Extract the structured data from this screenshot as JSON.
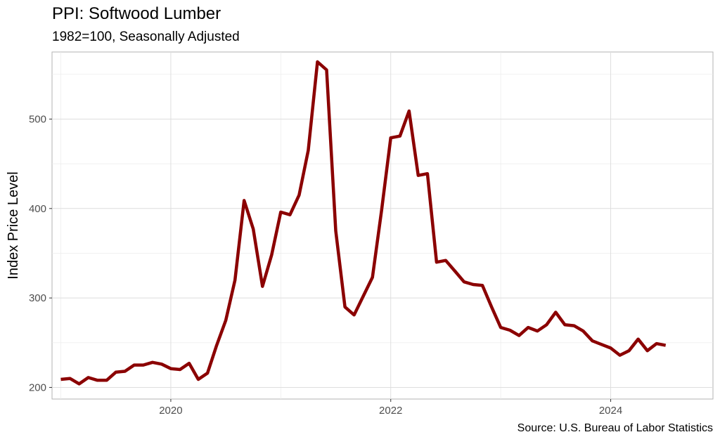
{
  "chart_data": {
    "type": "line",
    "title": "PPI: Softwood Lumber",
    "subtitle": "1982=100, Seasonally Adjusted",
    "caption": "Source: U.S. Bureau of Labor Statistics",
    "xlabel": "",
    "ylabel": "Index Price Level",
    "xlim": [
      2018.92,
      2024.93
    ],
    "ylim": [
      187,
      575
    ],
    "x_ticks": [
      2020,
      2022,
      2024
    ],
    "x_tick_labels": [
      "2020",
      "2022",
      "2024"
    ],
    "x_minor_ticks": [
      2019,
      2021,
      2023
    ],
    "y_ticks": [
      200,
      300,
      400,
      500
    ],
    "y_tick_labels": [
      "200",
      "300",
      "400",
      "500"
    ],
    "y_minor_ticks": [
      250,
      350,
      450,
      550
    ],
    "grid": true,
    "legend": "none",
    "series": [
      {
        "color": "#8b0000",
        "x": [
          "2019-01",
          "2019-02",
          "2019-03",
          "2019-04",
          "2019-05",
          "2019-06",
          "2019-07",
          "2019-08",
          "2019-09",
          "2019-10",
          "2019-11",
          "2019-12",
          "2020-01",
          "2020-02",
          "2020-03",
          "2020-04",
          "2020-05",
          "2020-06",
          "2020-07",
          "2020-08",
          "2020-09",
          "2020-10",
          "2020-11",
          "2020-12",
          "2021-01",
          "2021-02",
          "2021-03",
          "2021-04",
          "2021-05",
          "2021-06",
          "2021-07",
          "2021-08",
          "2021-09",
          "2021-10",
          "2021-11",
          "2021-12",
          "2022-01",
          "2022-02",
          "2022-03",
          "2022-04",
          "2022-05",
          "2022-06",
          "2022-07",
          "2022-08",
          "2022-09",
          "2022-10",
          "2022-11",
          "2022-12",
          "2023-01",
          "2023-02",
          "2023-03",
          "2023-04",
          "2023-05",
          "2023-06",
          "2023-07",
          "2023-08",
          "2023-09",
          "2023-10",
          "2023-11",
          "2023-12",
          "2024-01",
          "2024-02",
          "2024-03",
          "2024-04",
          "2024-05",
          "2024-06",
          "2024-07"
        ],
        "values": [
          209,
          210,
          204,
          211,
          208,
          208,
          217,
          218,
          225,
          225,
          228,
          226,
          221,
          220,
          227,
          209,
          216,
          247,
          275,
          320,
          409,
          377,
          313,
          348,
          396,
          393,
          415,
          465,
          564,
          555,
          375,
          290,
          281,
          302,
          323,
          398,
          479,
          481,
          509,
          437,
          439,
          340,
          342,
          330,
          318,
          315,
          314,
          290,
          267,
          264,
          258,
          267,
          263,
          270,
          284,
          270,
          269,
          263,
          252,
          248,
          244,
          236,
          241,
          254,
          241,
          249,
          247
        ]
      }
    ]
  }
}
